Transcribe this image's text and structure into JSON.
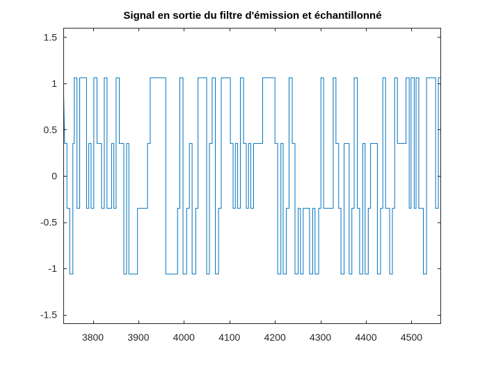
{
  "chart_data": {
    "type": "line",
    "title": "Signal en sortie du filtre d'émission et échantillonné",
    "xlabel": "",
    "ylabel": "",
    "xlim": [
      3735,
      4565
    ],
    "ylim": [
      -1.6,
      1.6
    ],
    "xticks": [
      3800,
      3900,
      4000,
      4100,
      4200,
      4300,
      4400,
      4500
    ],
    "xtick_labels": [
      "3800",
      "3900",
      "4000",
      "4100",
      "4200",
      "4300",
      "4400",
      "4500"
    ],
    "yticks": [
      1.5,
      1,
      0.5,
      0,
      -0.5,
      -1,
      -1.5
    ],
    "ytick_labels": [
      "1.5",
      "1",
      "0.5",
      "0",
      "-0.5",
      "-1",
      "-1.5"
    ],
    "grid": false,
    "box": true,
    "line_color": "#0072BD",
    "series": [
      {
        "points": [
          [
            3735,
            1.06
          ],
          [
            3738,
            0.35
          ],
          [
            3743,
            0.35
          ],
          [
            3743,
            -0.35
          ],
          [
            3749,
            -0.35
          ],
          [
            3749,
            -1.06
          ],
          [
            3756,
            -1.06
          ],
          [
            3756,
            0.35
          ],
          [
            3759,
            0.35
          ],
          [
            3759,
            1.06
          ],
          [
            3765,
            1.06
          ],
          [
            3765,
            -0.35
          ],
          [
            3771,
            -0.35
          ],
          [
            3771,
            1.06
          ],
          [
            3786,
            1.06
          ],
          [
            3786,
            -0.35
          ],
          [
            3791,
            -0.35
          ],
          [
            3791,
            0.35
          ],
          [
            3796,
            0.35
          ],
          [
            3796,
            -0.35
          ],
          [
            3802,
            -0.35
          ],
          [
            3802,
            1.06
          ],
          [
            3809,
            1.06
          ],
          [
            3809,
            0.35
          ],
          [
            3814,
            0.35
          ],
          [
            3814,
            0.35
          ],
          [
            3819,
            0.35
          ],
          [
            3819,
            -0.35
          ],
          [
            3825,
            -0.35
          ],
          [
            3825,
            1.06
          ],
          [
            3831,
            1.06
          ],
          [
            3831,
            -0.35
          ],
          [
            3841,
            -0.35
          ],
          [
            3841,
            0.35
          ],
          [
            3846,
            0.35
          ],
          [
            3846,
            -0.35
          ],
          [
            3851,
            -0.35
          ],
          [
            3851,
            1.06
          ],
          [
            3858,
            1.06
          ],
          [
            3858,
            0.35
          ],
          [
            3863,
            0.35
          ],
          [
            3863,
            0.35
          ],
          [
            3868,
            0.35
          ],
          [
            3868,
            -1.06
          ],
          [
            3874,
            -1.06
          ],
          [
            3874,
            0.35
          ],
          [
            3879,
            0.35
          ],
          [
            3879,
            -1.06
          ],
          [
            3898,
            -1.06
          ],
          [
            3898,
            -0.35
          ],
          [
            3920,
            -0.35
          ],
          [
            3920,
            0.35
          ],
          [
            3926,
            0.35
          ],
          [
            3926,
            1.06
          ],
          [
            3960,
            1.06
          ],
          [
            3960,
            -1.06
          ],
          [
            3986,
            -1.06
          ],
          [
            3986,
            -0.35
          ],
          [
            3991,
            -0.35
          ],
          [
            3991,
            1.06
          ],
          [
            3998,
            1.06
          ],
          [
            3998,
            -1.06
          ],
          [
            4006,
            -1.06
          ],
          [
            4006,
            -0.35
          ],
          [
            4012,
            -0.35
          ],
          [
            4012,
            0.35
          ],
          [
            4018,
            0.35
          ],
          [
            4018,
            -1.06
          ],
          [
            4026,
            -1.06
          ],
          [
            4026,
            -0.35
          ],
          [
            4031,
            -0.35
          ],
          [
            4031,
            1.06
          ],
          [
            4050,
            1.06
          ],
          [
            4050,
            -1.06
          ],
          [
            4056,
            -1.06
          ],
          [
            4056,
            0.35
          ],
          [
            4062,
            0.35
          ],
          [
            4062,
            1.06
          ],
          [
            4069,
            1.06
          ],
          [
            4069,
            -1.06
          ],
          [
            4076,
            -1.06
          ],
          [
            4076,
            -0.35
          ],
          [
            4082,
            -0.35
          ],
          [
            4082,
            1.06
          ],
          [
            4102,
            1.06
          ],
          [
            4102,
            0.35
          ],
          [
            4108,
            0.35
          ],
          [
            4108,
            -0.35
          ],
          [
            4113,
            -0.35
          ],
          [
            4113,
            0.35
          ],
          [
            4118,
            0.35
          ],
          [
            4118,
            -0.35
          ],
          [
            4124,
            -0.35
          ],
          [
            4124,
            1.06
          ],
          [
            4131,
            1.06
          ],
          [
            4131,
            0.35
          ],
          [
            4137,
            0.35
          ],
          [
            4137,
            -0.35
          ],
          [
            4142,
            -0.35
          ],
          [
            4142,
            0.35
          ],
          [
            4147,
            0.35
          ],
          [
            4147,
            -0.35
          ],
          [
            4153,
            -0.35
          ],
          [
            4153,
            0.35
          ],
          [
            4173,
            0.35
          ],
          [
            4173,
            1.06
          ],
          [
            4200,
            1.06
          ],
          [
            4200,
            0.35
          ],
          [
            4206,
            0.35
          ],
          [
            4206,
            -1.06
          ],
          [
            4213,
            -1.06
          ],
          [
            4213,
            0.35
          ],
          [
            4218,
            0.35
          ],
          [
            4218,
            -1.06
          ],
          [
            4225,
            -1.06
          ],
          [
            4225,
            -0.35
          ],
          [
            4231,
            -0.35
          ],
          [
            4231,
            1.06
          ],
          [
            4238,
            1.06
          ],
          [
            4238,
            0.35
          ],
          [
            4244,
            0.35
          ],
          [
            4244,
            -1.06
          ],
          [
            4251,
            -1.06
          ],
          [
            4251,
            -0.35
          ],
          [
            4256,
            -0.35
          ],
          [
            4256,
            -1.06
          ],
          [
            4262,
            -1.06
          ],
          [
            4262,
            -0.35
          ],
          [
            4276,
            -0.35
          ],
          [
            4276,
            -1.06
          ],
          [
            4283,
            -1.06
          ],
          [
            4283,
            -0.35
          ],
          [
            4288,
            -0.35
          ],
          [
            4288,
            -1.06
          ],
          [
            4296,
            -1.06
          ],
          [
            4296,
            -0.35
          ],
          [
            4301,
            -0.35
          ],
          [
            4301,
            1.06
          ],
          [
            4307,
            1.06
          ],
          [
            4307,
            -0.35
          ],
          [
            4328,
            -0.35
          ],
          [
            4328,
            1.06
          ],
          [
            4334,
            1.06
          ],
          [
            4334,
            0.35
          ],
          [
            4340,
            0.35
          ],
          [
            4340,
            -0.35
          ],
          [
            4345,
            -0.35
          ],
          [
            4345,
            -1.06
          ],
          [
            4352,
            -1.06
          ],
          [
            4352,
            0.35
          ],
          [
            4357,
            0.35
          ],
          [
            4357,
            0.35
          ],
          [
            4363,
            0.35
          ],
          [
            4363,
            -1.06
          ],
          [
            4369,
            -1.06
          ],
          [
            4369,
            -0.35
          ],
          [
            4374,
            -0.35
          ],
          [
            4374,
            1.06
          ],
          [
            4381,
            1.06
          ],
          [
            4381,
            -0.35
          ],
          [
            4386,
            -0.35
          ],
          [
            4386,
            -1.06
          ],
          [
            4393,
            -1.06
          ],
          [
            4393,
            0.35
          ],
          [
            4398,
            0.35
          ],
          [
            4398,
            -1.06
          ],
          [
            4405,
            -1.06
          ],
          [
            4405,
            -0.35
          ],
          [
            4410,
            -0.35
          ],
          [
            4410,
            0.35
          ],
          [
            4425,
            0.35
          ],
          [
            4425,
            -1.06
          ],
          [
            4432,
            -1.06
          ],
          [
            4432,
            -0.35
          ],
          [
            4437,
            -0.35
          ],
          [
            4437,
            1.06
          ],
          [
            4443,
            1.06
          ],
          [
            4443,
            -0.35
          ],
          [
            4452,
            -0.35
          ],
          [
            4452,
            -1.06
          ],
          [
            4458,
            -1.06
          ],
          [
            4458,
            -0.35
          ],
          [
            4463,
            -0.35
          ],
          [
            4463,
            1.06
          ],
          [
            4469,
            1.06
          ],
          [
            4469,
            0.35
          ],
          [
            4488,
            0.35
          ],
          [
            4488,
            1.06
          ],
          [
            4495,
            1.06
          ],
          [
            4495,
            -0.35
          ],
          [
            4499,
            -0.35
          ],
          [
            4499,
            1.06
          ],
          [
            4506,
            1.06
          ],
          [
            4506,
            -0.35
          ],
          [
            4510,
            -0.35
          ],
          [
            4510,
            1.06
          ],
          [
            4516,
            1.06
          ],
          [
            4516,
            -0.35
          ],
          [
            4526,
            -0.35
          ],
          [
            4526,
            -1.06
          ],
          [
            4533,
            -1.06
          ],
          [
            4533,
            1.06
          ],
          [
            4553,
            1.06
          ],
          [
            4553,
            -0.35
          ],
          [
            4559,
            -0.35
          ],
          [
            4559,
            1.06
          ],
          [
            4565,
            1.06
          ]
        ]
      }
    ]
  }
}
